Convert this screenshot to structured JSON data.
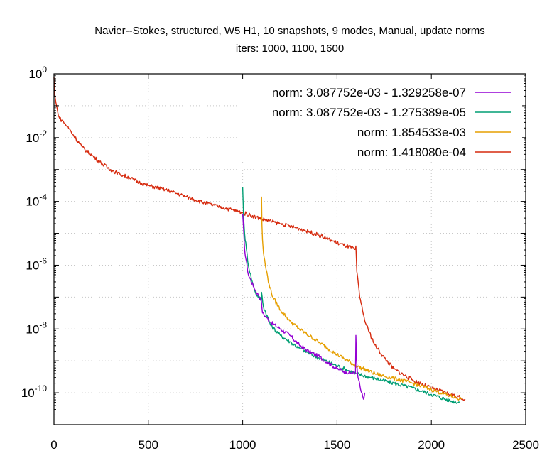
{
  "chart_data": {
    "type": "line",
    "title": "Navier--Stokes, structured, W5 H1, 10 snapshots, 9 modes, Manual, update norms",
    "subtitle": "iters: 1000, 1100, 1600",
    "xlabel": "",
    "ylabel": "",
    "xlim": [
      0,
      2500
    ],
    "ylim_log10": [
      -11,
      0
    ],
    "y_scale": "log",
    "grid": true,
    "legend_placement": "top-right",
    "x_ticks": [
      {
        "value": 0,
        "label": "0"
      },
      {
        "value": 500,
        "label": "500"
      },
      {
        "value": 1000,
        "label": "1000"
      },
      {
        "value": 1500,
        "label": "1500"
      },
      {
        "value": 2000,
        "label": "2000"
      },
      {
        "value": 2500,
        "label": "2500"
      }
    ],
    "y_ticks": [
      {
        "exp": 0,
        "base": "10",
        "sup": "0"
      },
      {
        "exp": -2,
        "base": "10",
        "sup": "-2"
      },
      {
        "exp": -4,
        "base": "10",
        "sup": "-4"
      },
      {
        "exp": -6,
        "base": "10",
        "sup": "-6"
      },
      {
        "exp": -8,
        "base": "10",
        "sup": "-8"
      },
      {
        "exp": -10,
        "base": "10",
        "sup": "-10"
      }
    ],
    "series": [
      {
        "name": "norm: 3.087752e-03 - 1.329258e-07",
        "color": "#9400d3",
        "x": [
          1000,
          1010,
          1030,
          1060,
          1099,
          1105,
          1150,
          1200,
          1250,
          1300,
          1350,
          1400,
          1450,
          1500,
          1550,
          1598,
          1600,
          1603,
          1608,
          1615,
          1625,
          1640,
          1650
        ],
        "log10_y": [
          -4.4,
          -5.5,
          -6.3,
          -6.7,
          -7.1,
          -7.5,
          -7.8,
          -8.0,
          -8.2,
          -8.5,
          -8.7,
          -8.85,
          -9.05,
          -9.25,
          -9.35,
          -9.4,
          -8.2,
          -8.9,
          -9.35,
          -9.6,
          -9.9,
          -10.2,
          -10.0
        ]
      },
      {
        "name": "norm: 3.087752e-03 - 1.275389e-05",
        "color": "#009e73",
        "x": [
          1000,
          1005,
          1010,
          1020,
          1030,
          1050,
          1070,
          1099,
          1100,
          1110,
          1150,
          1200,
          1250,
          1300,
          1400,
          1500,
          1600,
          1700,
          1800,
          1900,
          2000,
          2100,
          2150
        ],
        "log10_y": [
          -3.55,
          -4.5,
          -5.0,
          -5.5,
          -6.0,
          -6.5,
          -6.9,
          -7.1,
          -6.85,
          -7.3,
          -7.9,
          -8.2,
          -8.4,
          -8.6,
          -8.9,
          -9.15,
          -9.4,
          -9.55,
          -9.7,
          -9.85,
          -10.05,
          -10.25,
          -10.3
        ]
      },
      {
        "name": "norm: 1.854533e-03",
        "color": "#e69f00",
        "x": [
          1100,
          1102,
          1105,
          1110,
          1120,
          1140,
          1160,
          1200,
          1250,
          1300,
          1400,
          1500,
          1600,
          1700,
          1800,
          1900,
          2000,
          2100,
          2160
        ],
        "log10_y": [
          -3.85,
          -4.7,
          -5.2,
          -5.6,
          -6.0,
          -6.6,
          -7.0,
          -7.4,
          -7.75,
          -8.0,
          -8.4,
          -8.8,
          -9.15,
          -9.4,
          -9.55,
          -9.7,
          -9.9,
          -10.1,
          -10.2
        ]
      },
      {
        "name": "norm: 1.418080e-04",
        "color": "#d62a0e",
        "x": [
          0,
          2,
          5,
          10,
          20,
          30,
          50,
          70,
          90,
          100,
          150,
          200,
          250,
          300,
          350,
          400,
          450,
          500,
          600,
          700,
          800,
          900,
          1000,
          1100,
          1200,
          1300,
          1400,
          1500,
          1598,
          1600,
          1605,
          1620,
          1650,
          1700,
          1750,
          1800,
          1900,
          2000,
          2100,
          2180
        ],
        "log10_y": [
          -0.1,
          -0.4,
          -0.7,
          -0.9,
          -1.2,
          -1.4,
          -1.5,
          -1.65,
          -1.8,
          -1.9,
          -2.3,
          -2.55,
          -2.8,
          -3.0,
          -3.15,
          -3.25,
          -3.4,
          -3.5,
          -3.65,
          -3.85,
          -4.05,
          -4.2,
          -4.35,
          -4.55,
          -4.7,
          -4.85,
          -5.05,
          -5.3,
          -5.5,
          -5.4,
          -6.2,
          -7.0,
          -7.8,
          -8.5,
          -8.9,
          -9.25,
          -9.6,
          -9.85,
          -10.05,
          -10.2
        ]
      }
    ]
  }
}
